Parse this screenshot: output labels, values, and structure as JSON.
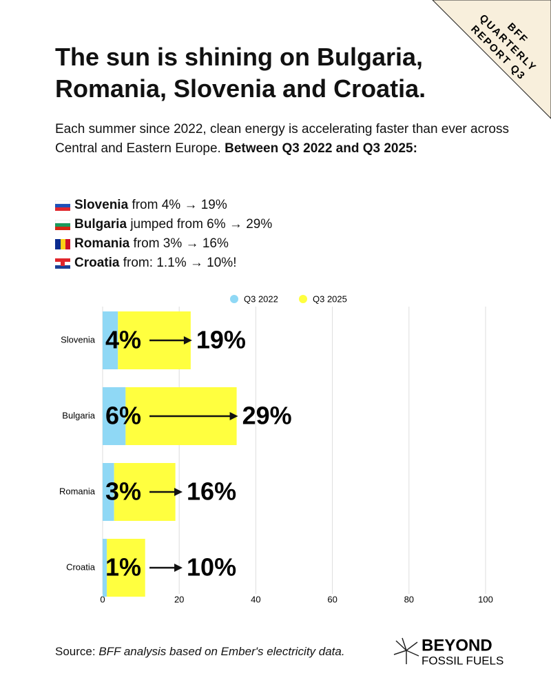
{
  "corner_tag": [
    "BFF",
    "QUARTERLY",
    "REPORT Q3"
  ],
  "title": "The sun is shining on Bulgaria, Romania, Slovenia and Croatia.",
  "intro": {
    "text": "Each summer since 2022, clean energy is accelerating faster than ever across Central and Eastern Europe.",
    "bold": "Between Q3 2022 and Q3 2025:"
  },
  "highlights": [
    {
      "country": "Slovenia",
      "text": "from 4% → 19%"
    },
    {
      "country": "Bulgaria",
      "text": "jumped from 6% → 29%"
    },
    {
      "country": "Romania",
      "text": "from 3% → 16%"
    },
    {
      "country": "Croatia",
      "text": "from: 1.1% → 10%!"
    }
  ],
  "chart_data": {
    "type": "bar",
    "orientation": "horizontal",
    "stacked": true,
    "categories": [
      "Slovenia",
      "Bulgaria",
      "Romania",
      "Croatia"
    ],
    "series": [
      {
        "name": "Q3 2022",
        "color": "#8fd8f5",
        "values": [
          4,
          6,
          3,
          1.1
        ],
        "value_labels": [
          "4%",
          "6%",
          "3%",
          "1%"
        ]
      },
      {
        "name": "Q3 2025",
        "color": "#ffff3f",
        "values": [
          19,
          29,
          16,
          10
        ],
        "value_labels": [
          "19%",
          "29%",
          "16%",
          "10%"
        ]
      }
    ],
    "xlim": [
      0,
      100
    ],
    "xticks": [
      0,
      20,
      40,
      60,
      80,
      100
    ],
    "grid": true,
    "legend": "top"
  },
  "source": {
    "label": "Source:",
    "text": "BFF analysis based on Ember's electricity data."
  },
  "logo": [
    "BEYOND",
    "FOSSIL FUELS"
  ]
}
